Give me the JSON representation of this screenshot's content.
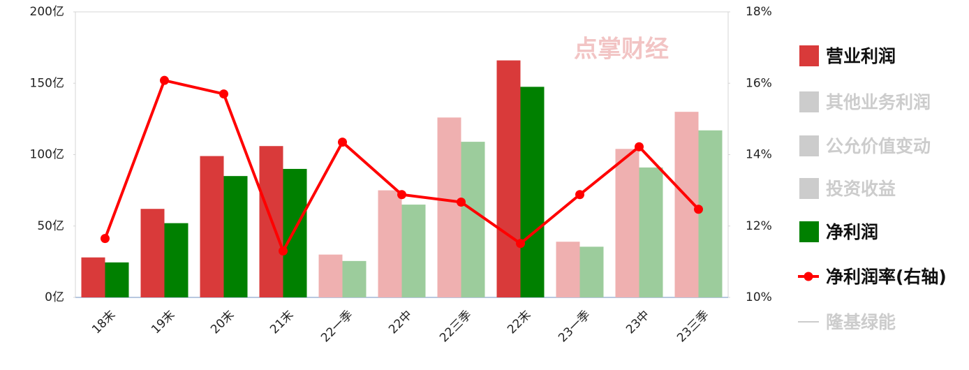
{
  "chart_data": {
    "type": "bar_line",
    "watermark": "点掌财经",
    "categories": [
      "18末",
      "19末",
      "20末",
      "21末",
      "22一季",
      "22中",
      "22三季",
      "22末",
      "23一季",
      "23中",
      "23三季"
    ],
    "ylim": [
      0,
      200
    ],
    "yticks": [
      {
        "value": 0,
        "label": "0亿"
      },
      {
        "value": 50,
        "label": "50亿"
      },
      {
        "value": 100,
        "label": "100亿"
      },
      {
        "value": 150,
        "label": "150亿"
      },
      {
        "value": 200,
        "label": "200亿"
      }
    ],
    "y2lim": [
      10,
      18
    ],
    "y2ticks": [
      {
        "value": 10,
        "label": "10%"
      },
      {
        "value": 12,
        "label": "12%"
      },
      {
        "value": 14,
        "label": "14%"
      },
      {
        "value": 16,
        "label": "16%"
      },
      {
        "value": 18,
        "label": "18%"
      }
    ],
    "series": [
      {
        "name": "营业利润",
        "type": "bar",
        "visible": true,
        "color": "#d93a3a",
        "colors": [
          "#d93a3a",
          "#d93a3a",
          "#d93a3a",
          "#d93a3a",
          "#efb0b0",
          "#efb0b0",
          "#efb0b0",
          "#d93a3a",
          "#efb0b0",
          "#efb0b0",
          "#efb0b0"
        ],
        "values": [
          28,
          62,
          99,
          106,
          30,
          75,
          126,
          166,
          39,
          104,
          130
        ]
      },
      {
        "name": "其他业务利润",
        "type": "bar",
        "visible": false,
        "color": "#cccccc"
      },
      {
        "name": "公允价值变动",
        "type": "bar",
        "visible": false,
        "color": "#cccccc"
      },
      {
        "name": "投资收益",
        "type": "bar",
        "visible": false,
        "color": "#cccccc"
      },
      {
        "name": "净利润",
        "type": "bar",
        "visible": true,
        "color": "#008000",
        "colors": [
          "#008000",
          "#008000",
          "#008000",
          "#008000",
          "#9ccc9c",
          "#9ccc9c",
          "#9ccc9c",
          "#008000",
          "#9ccc9c",
          "#9ccc9c",
          "#9ccc9c"
        ],
        "values": [
          24.5,
          52,
          85,
          90,
          25.5,
          65,
          109,
          147.5,
          35.5,
          91,
          117
        ]
      },
      {
        "name": "净利润率(右轴)",
        "type": "line",
        "visible": true,
        "axis": "y2",
        "color": "#ff0000",
        "values": [
          11.65,
          16.08,
          15.7,
          11.3,
          14.35,
          12.88,
          12.67,
          11.51,
          12.88,
          14.22,
          12.47
        ]
      },
      {
        "name": "隆基绿能",
        "type": "line",
        "visible": false,
        "color": "#cccccc"
      }
    ]
  }
}
